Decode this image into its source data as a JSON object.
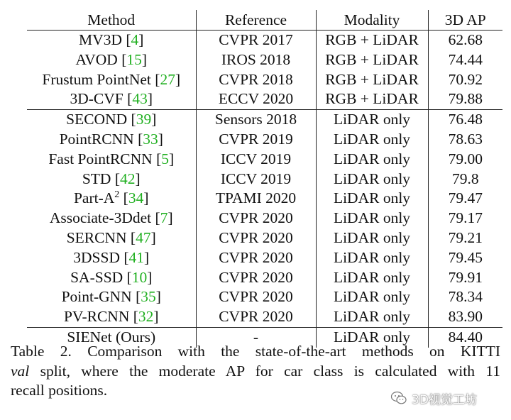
{
  "table": {
    "headers": [
      "Method",
      "Reference",
      "Modality",
      "3D AP"
    ],
    "rows": [
      {
        "method": "MV3D",
        "ref": "4",
        "reference": "CVPR 2017",
        "modality": "RGB + LiDAR",
        "ap": "62.68"
      },
      {
        "method": "AVOD",
        "ref": "15",
        "reference": "IROS 2018",
        "modality": "RGB + LiDAR",
        "ap": "74.44"
      },
      {
        "method": "Frustum PointNet",
        "ref": "27",
        "reference": "CVPR 2018",
        "modality": "RGB + LiDAR",
        "ap": "70.92"
      },
      {
        "method": "3D-CVF",
        "ref": "43",
        "reference": "ECCV 2020",
        "modality": "RGB + LiDAR",
        "ap": "79.88"
      },
      {
        "method": "SECOND",
        "ref": "39",
        "reference": "Sensors 2018",
        "modality": "LiDAR only",
        "ap": "76.48"
      },
      {
        "method": "PointRCNN",
        "ref": "33",
        "reference": "CVPR 2019",
        "modality": "LiDAR only",
        "ap": "78.63"
      },
      {
        "method": "Fast PointRCNN",
        "ref": "5",
        "reference": "ICCV 2019",
        "modality": "LiDAR only",
        "ap": "79.00"
      },
      {
        "method": "STD",
        "ref": "42",
        "reference": "ICCV 2019",
        "modality": "LiDAR only",
        "ap": "79.8"
      },
      {
        "method": "Part-A",
        "sup": "2",
        "ref": "34",
        "reference": "TPAMI 2020",
        "modality": "LiDAR only",
        "ap": "79.47"
      },
      {
        "method": "Associate-3Ddet",
        "ref": "7",
        "reference": "CVPR 2020",
        "modality": "LiDAR only",
        "ap": "79.17"
      },
      {
        "method": "SERCNN",
        "ref": "47",
        "reference": "CVPR 2020",
        "modality": "LiDAR only",
        "ap": "79.21"
      },
      {
        "method": "3DSSD",
        "ref": "41",
        "reference": "CVPR 2020",
        "modality": "LiDAR only",
        "ap": "79.45"
      },
      {
        "method": "SA-SSD",
        "ref": "10",
        "reference": "CVPR 2020",
        "modality": "LiDAR only",
        "ap": "79.91"
      },
      {
        "method": "Point-GNN",
        "ref": "35",
        "reference": "CVPR 2020",
        "modality": "LiDAR only",
        "ap": "78.34"
      },
      {
        "method": "PV-RCNN",
        "ref": "32",
        "reference": "CVPR 2020",
        "modality": "LiDAR only",
        "ap": "83.90"
      },
      {
        "method": "SIENet (Ours)",
        "ref": "",
        "reference": "-",
        "modality": "LiDAR only",
        "ap": "84.40",
        "bold_ap": true
      }
    ],
    "group_starts": [
      4,
      15
    ]
  },
  "caption": {
    "line1": "Table 2. Comparison with the state-of-the-art methods on KITTI",
    "line2_italic": "val",
    "line2_rest": " split, where the moderate AP for car class is calculated with 11",
    "line3": "recall positions."
  },
  "watermark": {
    "text": "3D视觉工坊",
    "icon": "wechat-icon"
  },
  "colors": {
    "text": "#111111",
    "citation_link": "#22b022",
    "rule": "#222222"
  }
}
